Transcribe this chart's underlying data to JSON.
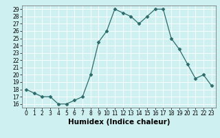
{
  "x": [
    0,
    1,
    2,
    3,
    4,
    5,
    6,
    7,
    8,
    9,
    10,
    11,
    12,
    13,
    14,
    15,
    16,
    17,
    18,
    19,
    20,
    21,
    22,
    23
  ],
  "y": [
    18,
    17.5,
    17,
    17,
    16,
    16,
    16.5,
    17,
    20,
    24.5,
    26,
    29,
    28.5,
    28,
    27,
    28,
    29,
    29,
    25,
    23.5,
    21.5,
    19.5,
    20,
    18.5
  ],
  "line_color": "#2d6b6b",
  "marker": "D",
  "markersize": 2.5,
  "bg_color": "#cff0f0",
  "grid_color": "#ffffff",
  "xlabel": "Humidex (Indice chaleur)",
  "ylim": [
    15.5,
    29.5
  ],
  "yticks": [
    16,
    17,
    18,
    19,
    20,
    21,
    22,
    23,
    24,
    25,
    26,
    27,
    28,
    29
  ],
  "xlim": [
    -0.5,
    23.5
  ],
  "xticks": [
    0,
    1,
    2,
    3,
    4,
    5,
    6,
    7,
    8,
    9,
    10,
    11,
    12,
    13,
    14,
    15,
    16,
    17,
    18,
    19,
    20,
    21,
    22,
    23
  ],
  "tick_labelsize": 5.5,
  "xlabel_fontsize": 7.5
}
